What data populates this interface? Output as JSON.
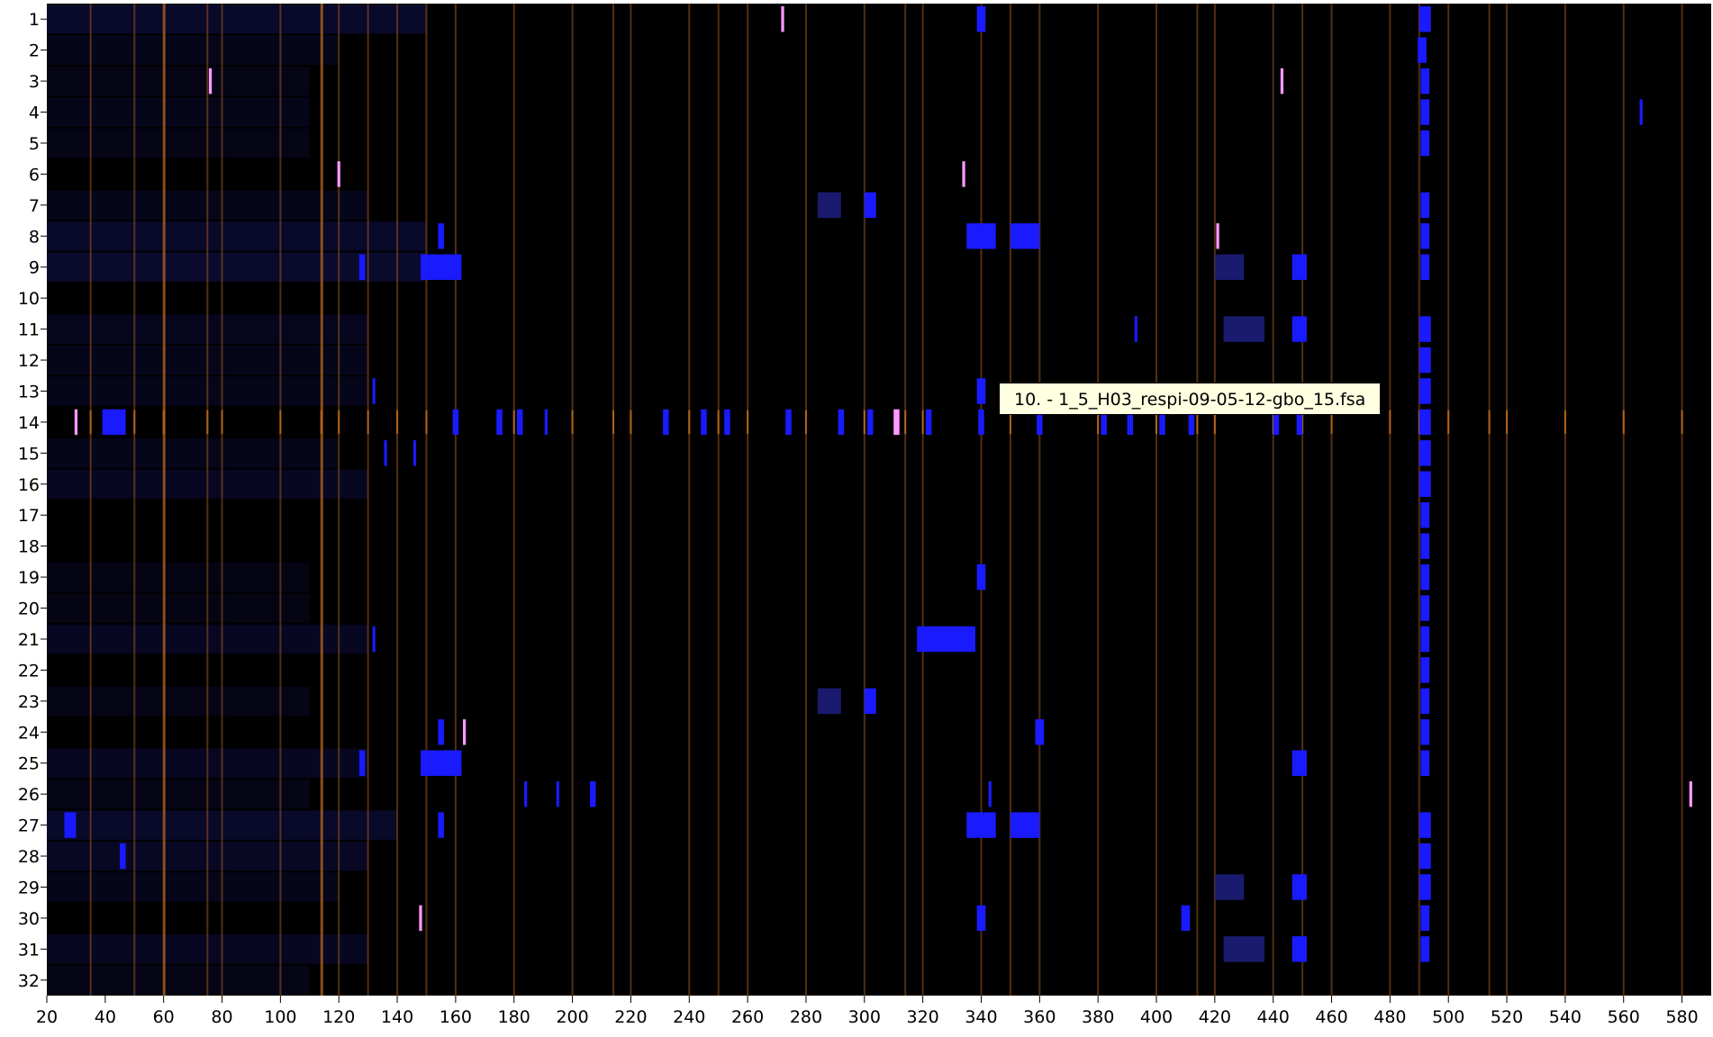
{
  "window": {
    "tooltip": "10. -  1_5_H03_respi-09-05-12-gbo_15.fsa"
  },
  "colors": {
    "background": "#000000",
    "sample_peak": "#1a1aff",
    "size_standard": "#b8661e",
    "off_scale_peak": "#ff99ff",
    "smear": "#10104a"
  },
  "gel": {
    "lanes": [
      "1",
      "2",
      "3",
      "4",
      "5",
      "6",
      "7",
      "8",
      "9",
      "10",
      "11",
      "12",
      "13",
      "14",
      "15",
      "16",
      "17",
      "18",
      "19",
      "20",
      "21",
      "22",
      "23",
      "24",
      "25",
      "26",
      "27",
      "28",
      "29",
      "30",
      "31",
      "32"
    ],
    "x_range": [
      20,
      590
    ],
    "x_ticks": [
      20,
      40,
      60,
      80,
      100,
      120,
      140,
      160,
      180,
      200,
      220,
      240,
      260,
      280,
      300,
      320,
      340,
      360,
      380,
      400,
      420,
      440,
      460,
      480,
      500,
      520,
      540,
      560,
      580
    ],
    "x_tick_labels": [
      "20",
      "40",
      "60",
      "80",
      "100",
      "120",
      "140",
      "160",
      "180",
      "200",
      "220",
      "240",
      "260",
      "280",
      "300",
      "320",
      "340",
      "360",
      "380",
      "400",
      "420",
      "440",
      "460",
      "480",
      "500",
      "520",
      "540",
      "560",
      "580"
    ],
    "size_standard_bp": [
      35,
      50,
      60,
      75,
      80,
      100,
      114,
      120,
      130,
      140,
      150,
      160,
      180,
      200,
      214,
      220,
      240,
      250,
      260,
      280,
      300,
      314,
      320,
      340,
      350,
      360,
      380,
      400,
      414,
      420,
      440,
      450,
      460,
      480,
      490,
      500,
      514,
      520,
      540,
      560,
      580
    ],
    "strong_bp": [
      60,
      114
    ],
    "reference_lane": "14",
    "reference_bands_bp": [
      30,
      40,
      41,
      42,
      43,
      44,
      160,
      175,
      181,
      183,
      191,
      232,
      240,
      245,
      252,
      254,
      268,
      274,
      286,
      288,
      292,
      302,
      311,
      321,
      323,
      340,
      360,
      382,
      391,
      402,
      412,
      442,
      449,
      464,
      492,
      496,
      538,
      552,
      560,
      580
    ],
    "lane_smears": [
      {
        "lane": "1",
        "ranges": [
          [
            20,
            150,
            0.55
          ]
        ]
      },
      {
        "lane": "2",
        "ranges": [
          [
            20,
            120,
            0.35
          ]
        ]
      },
      {
        "lane": "3",
        "ranges": [
          [
            20,
            110,
            0.3
          ]
        ]
      },
      {
        "lane": "4",
        "ranges": [
          [
            20,
            110,
            0.35
          ]
        ]
      },
      {
        "lane": "5",
        "ranges": [
          [
            20,
            110,
            0.3
          ]
        ]
      },
      {
        "lane": "7",
        "ranges": [
          [
            20,
            130,
            0.35
          ]
        ]
      },
      {
        "lane": "8",
        "ranges": [
          [
            20,
            150,
            0.55
          ]
        ]
      },
      {
        "lane": "9",
        "ranges": [
          [
            20,
            150,
            0.6
          ]
        ]
      },
      {
        "lane": "11",
        "ranges": [
          [
            20,
            130,
            0.4
          ]
        ]
      },
      {
        "lane": "12",
        "ranges": [
          [
            20,
            130,
            0.35
          ]
        ]
      },
      {
        "lane": "13",
        "ranges": [
          [
            20,
            130,
            0.35
          ]
        ]
      },
      {
        "lane": "15",
        "ranges": [
          [
            20,
            120,
            0.35
          ]
        ]
      },
      {
        "lane": "16",
        "ranges": [
          [
            20,
            130,
            0.45
          ]
        ]
      },
      {
        "lane": "19",
        "ranges": [
          [
            20,
            110,
            0.25
          ]
        ]
      },
      {
        "lane": "20",
        "ranges": [
          [
            20,
            110,
            0.25
          ]
        ]
      },
      {
        "lane": "21",
        "ranges": [
          [
            20,
            130,
            0.45
          ]
        ]
      },
      {
        "lane": "23",
        "ranges": [
          [
            20,
            110,
            0.3
          ]
        ]
      },
      {
        "lane": "25",
        "ranges": [
          [
            20,
            130,
            0.45
          ]
        ]
      },
      {
        "lane": "26",
        "ranges": [
          [
            20,
            110,
            0.3
          ]
        ]
      },
      {
        "lane": "27",
        "ranges": [
          [
            20,
            140,
            0.55
          ]
        ]
      },
      {
        "lane": "28",
        "ranges": [
          [
            20,
            130,
            0.5
          ]
        ]
      },
      {
        "lane": "29",
        "ranges": [
          [
            20,
            120,
            0.35
          ]
        ]
      },
      {
        "lane": "31",
        "ranges": [
          [
            20,
            130,
            0.45
          ]
        ]
      },
      {
        "lane": "32",
        "ranges": [
          [
            20,
            110,
            0.3
          ]
        ]
      }
    ],
    "bands": [
      {
        "lane": "1",
        "bp": 272,
        "w": 1,
        "color": "pink"
      },
      {
        "lane": "1",
        "bp": 340,
        "w": 3,
        "color": "blue"
      },
      {
        "lane": "1",
        "bp": 492,
        "w": 4,
        "color": "blue"
      },
      {
        "lane": "2",
        "bp": 491,
        "w": 3,
        "color": "blue"
      },
      {
        "lane": "3",
        "bp": 76,
        "w": 1,
        "color": "pink"
      },
      {
        "lane": "3",
        "bp": 443,
        "w": 1,
        "color": "pink"
      },
      {
        "lane": "3",
        "bp": 492,
        "w": 3,
        "color": "blue"
      },
      {
        "lane": "4",
        "bp": 566,
        "w": 1,
        "color": "blue"
      },
      {
        "lane": "4",
        "bp": 492,
        "w": 3,
        "color": "blue"
      },
      {
        "lane": "5",
        "bp": 492,
        "w": 3,
        "color": "blue"
      },
      {
        "lane": "6",
        "bp": 120,
        "w": 1,
        "color": "pink"
      },
      {
        "lane": "6",
        "bp": 334,
        "w": 1,
        "color": "pink"
      },
      {
        "lane": "7",
        "bp": 288,
        "w": 8,
        "color": "dim"
      },
      {
        "lane": "7",
        "bp": 302,
        "w": 4,
        "color": "blue"
      },
      {
        "lane": "7",
        "bp": 492,
        "w": 3,
        "color": "blue"
      },
      {
        "lane": "8",
        "bp": 155,
        "w": 2,
        "color": "blue"
      },
      {
        "lane": "8",
        "bp": 340,
        "w": 10,
        "color": "blue"
      },
      {
        "lane": "8",
        "bp": 355,
        "w": 10,
        "color": "blue"
      },
      {
        "lane": "8",
        "bp": 421,
        "w": 1,
        "color": "pink"
      },
      {
        "lane": "8",
        "bp": 492,
        "w": 3,
        "color": "blue"
      },
      {
        "lane": "9",
        "bp": 128,
        "w": 2,
        "color": "blue"
      },
      {
        "lane": "9",
        "bp": 155,
        "w": 14,
        "color": "blue"
      },
      {
        "lane": "9",
        "bp": 425,
        "w": 10,
        "color": "dim"
      },
      {
        "lane": "9",
        "bp": 449,
        "w": 5,
        "color": "blue"
      },
      {
        "lane": "9",
        "bp": 492,
        "w": 3,
        "color": "blue"
      },
      {
        "lane": "11",
        "bp": 393,
        "w": 1,
        "color": "blue"
      },
      {
        "lane": "11",
        "bp": 430,
        "w": 14,
        "color": "dim"
      },
      {
        "lane": "11",
        "bp": 449,
        "w": 5,
        "color": "blue"
      },
      {
        "lane": "11",
        "bp": 492,
        "w": 4,
        "color": "blue"
      },
      {
        "lane": "12",
        "bp": 492,
        "w": 4,
        "color": "blue"
      },
      {
        "lane": "13",
        "bp": 132,
        "w": 1,
        "color": "blue"
      },
      {
        "lane": "13",
        "bp": 340,
        "w": 3,
        "color": "blue"
      },
      {
        "lane": "13",
        "bp": 492,
        "w": 4,
        "color": "blue"
      },
      {
        "lane": "14",
        "bp": 30,
        "w": 1,
        "color": "pink"
      },
      {
        "lane": "14",
        "bp": 43,
        "w": 8,
        "color": "blue"
      },
      {
        "lane": "14",
        "bp": 160,
        "w": 2,
        "color": "blue"
      },
      {
        "lane": "14",
        "bp": 175,
        "w": 2,
        "color": "blue"
      },
      {
        "lane": "14",
        "bp": 182,
        "w": 2,
        "color": "blue"
      },
      {
        "lane": "14",
        "bp": 191,
        "w": 1,
        "color": "blue"
      },
      {
        "lane": "14",
        "bp": 232,
        "w": 2,
        "color": "blue"
      },
      {
        "lane": "14",
        "bp": 245,
        "w": 2,
        "color": "blue"
      },
      {
        "lane": "14",
        "bp": 253,
        "w": 2,
        "color": "blue"
      },
      {
        "lane": "14",
        "bp": 274,
        "w": 2,
        "color": "blue"
      },
      {
        "lane": "14",
        "bp": 292,
        "w": 2,
        "color": "blue"
      },
      {
        "lane": "14",
        "bp": 302,
        "w": 2,
        "color": "blue"
      },
      {
        "lane": "14",
        "bp": 311,
        "w": 2,
        "color": "pink"
      },
      {
        "lane": "14",
        "bp": 322,
        "w": 2,
        "color": "blue"
      },
      {
        "lane": "14",
        "bp": 340,
        "w": 2,
        "color": "blue"
      },
      {
        "lane": "14",
        "bp": 360,
        "w": 2,
        "color": "blue"
      },
      {
        "lane": "14",
        "bp": 382,
        "w": 2,
        "color": "blue"
      },
      {
        "lane": "14",
        "bp": 391,
        "w": 2,
        "color": "blue"
      },
      {
        "lane": "14",
        "bp": 402,
        "w": 2,
        "color": "blue"
      },
      {
        "lane": "14",
        "bp": 412,
        "w": 2,
        "color": "blue"
      },
      {
        "lane": "14",
        "bp": 441,
        "w": 2,
        "color": "blue"
      },
      {
        "lane": "14",
        "bp": 449,
        "w": 2,
        "color": "blue"
      },
      {
        "lane": "14",
        "bp": 492,
        "w": 4,
        "color": "blue"
      },
      {
        "lane": "15",
        "bp": 136,
        "w": 1,
        "color": "blue"
      },
      {
        "lane": "15",
        "bp": 146,
        "w": 1,
        "color": "blue"
      },
      {
        "lane": "15",
        "bp": 492,
        "w": 4,
        "color": "blue"
      },
      {
        "lane": "16",
        "bp": 492,
        "w": 4,
        "color": "blue"
      },
      {
        "lane": "17",
        "bp": 492,
        "w": 3,
        "color": "blue"
      },
      {
        "lane": "18",
        "bp": 492,
        "w": 3,
        "color": "blue"
      },
      {
        "lane": "19",
        "bp": 340,
        "w": 3,
        "color": "blue"
      },
      {
        "lane": "19",
        "bp": 492,
        "w": 3,
        "color": "blue"
      },
      {
        "lane": "20",
        "bp": 492,
        "w": 3,
        "color": "blue"
      },
      {
        "lane": "21",
        "bp": 132,
        "w": 1,
        "color": "blue"
      },
      {
        "lane": "21",
        "bp": 328,
        "w": 20,
        "color": "blue"
      },
      {
        "lane": "21",
        "bp": 492,
        "w": 3,
        "color": "blue"
      },
      {
        "lane": "22",
        "bp": 492,
        "w": 3,
        "color": "blue"
      },
      {
        "lane": "23",
        "bp": 288,
        "w": 8,
        "color": "dim"
      },
      {
        "lane": "23",
        "bp": 302,
        "w": 4,
        "color": "blue"
      },
      {
        "lane": "23",
        "bp": 492,
        "w": 3,
        "color": "blue"
      },
      {
        "lane": "24",
        "bp": 155,
        "w": 2,
        "color": "blue"
      },
      {
        "lane": "24",
        "bp": 163,
        "w": 1,
        "color": "pink"
      },
      {
        "lane": "24",
        "bp": 360,
        "w": 3,
        "color": "blue"
      },
      {
        "lane": "24",
        "bp": 492,
        "w": 3,
        "color": "blue"
      },
      {
        "lane": "25",
        "bp": 128,
        "w": 2,
        "color": "blue"
      },
      {
        "lane": "25",
        "bp": 155,
        "w": 14,
        "color": "blue"
      },
      {
        "lane": "25",
        "bp": 449,
        "w": 5,
        "color": "blue"
      },
      {
        "lane": "25",
        "bp": 492,
        "w": 3,
        "color": "blue"
      },
      {
        "lane": "26",
        "bp": 184,
        "w": 1,
        "color": "blue"
      },
      {
        "lane": "26",
        "bp": 195,
        "w": 1,
        "color": "blue"
      },
      {
        "lane": "26",
        "bp": 207,
        "w": 2,
        "color": "blue"
      },
      {
        "lane": "26",
        "bp": 343,
        "w": 1,
        "color": "blue"
      },
      {
        "lane": "26",
        "bp": 583,
        "w": 1,
        "color": "pink"
      },
      {
        "lane": "27",
        "bp": 28,
        "w": 4,
        "color": "blue"
      },
      {
        "lane": "27",
        "bp": 155,
        "w": 2,
        "color": "blue"
      },
      {
        "lane": "27",
        "bp": 340,
        "w": 10,
        "color": "blue"
      },
      {
        "lane": "27",
        "bp": 355,
        "w": 10,
        "color": "blue"
      },
      {
        "lane": "27",
        "bp": 492,
        "w": 4,
        "color": "blue"
      },
      {
        "lane": "28",
        "bp": 46,
        "w": 2,
        "color": "blue"
      },
      {
        "lane": "28",
        "bp": 492,
        "w": 4,
        "color": "blue"
      },
      {
        "lane": "29",
        "bp": 425,
        "w": 10,
        "color": "dim"
      },
      {
        "lane": "29",
        "bp": 449,
        "w": 5,
        "color": "blue"
      },
      {
        "lane": "29",
        "bp": 492,
        "w": 4,
        "color": "blue"
      },
      {
        "lane": "30",
        "bp": 148,
        "w": 1,
        "color": "pink"
      },
      {
        "lane": "30",
        "bp": 340,
        "w": 3,
        "color": "blue"
      },
      {
        "lane": "30",
        "bp": 410,
        "w": 3,
        "color": "blue"
      },
      {
        "lane": "30",
        "bp": 492,
        "w": 3,
        "color": "blue"
      },
      {
        "lane": "31",
        "bp": 430,
        "w": 14,
        "color": "dim"
      },
      {
        "lane": "31",
        "bp": 449,
        "w": 5,
        "color": "blue"
      },
      {
        "lane": "31",
        "bp": 492,
        "w": 3,
        "color": "blue"
      }
    ]
  }
}
